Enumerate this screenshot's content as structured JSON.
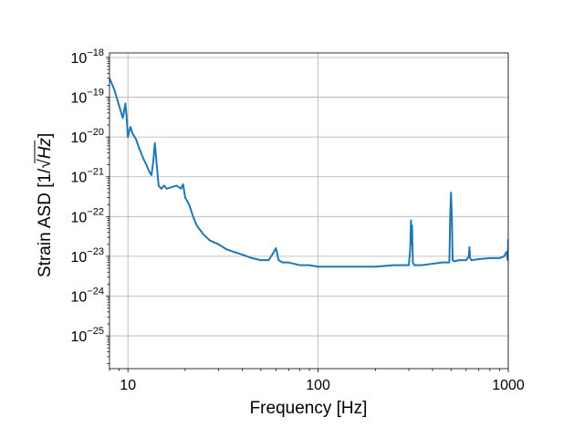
{
  "chart_data": {
    "type": "line",
    "xlabel": "Frequency [Hz]",
    "ylabel_prefix": "Strain ASD [1/√",
    "ylabel_radicand": "Hz",
    "ylabel_suffix": "]",
    "x_scale": "log",
    "y_scale": "log",
    "xlim": [
      8,
      1000
    ],
    "ylim": [
      1.5e-26,
      1.3e-18
    ],
    "grid": true,
    "x_ticks": [
      {
        "value": 10,
        "label": "10"
      },
      {
        "value": 100,
        "label": "100"
      },
      {
        "value": 1000,
        "label": "1000"
      }
    ],
    "y_ticks": [
      {
        "value": 1e-25,
        "base": "10",
        "exp": "−25"
      },
      {
        "value": 1e-24,
        "base": "10",
        "exp": "−24"
      },
      {
        "value": 1e-23,
        "base": "10",
        "exp": "−23"
      },
      {
        "value": 1e-22,
        "base": "10",
        "exp": "−22"
      },
      {
        "value": 1e-21,
        "base": "10",
        "exp": "−21"
      },
      {
        "value": 1e-20,
        "base": "10",
        "exp": "−20"
      },
      {
        "value": 1e-19,
        "base": "10",
        "exp": "−19"
      },
      {
        "value": 1e-18,
        "base": "10",
        "exp": "−18"
      }
    ],
    "series": [
      {
        "color": "#1f77b4",
        "x": [
          8,
          8.5,
          9,
          9.4,
          9.7,
          9.85,
          10,
          10.3,
          10.6,
          11,
          11.5,
          12,
          12.5,
          13,
          13.3,
          13.6,
          13.85,
          14,
          14.25,
          14.5,
          15,
          15.5,
          16,
          17,
          18,
          19,
          19.5,
          20,
          21,
          22,
          23,
          25,
          27,
          30,
          33,
          36,
          40,
          45,
          50,
          55,
          58,
          60,
          62,
          65,
          70,
          80,
          90,
          100,
          120,
          150,
          200,
          250,
          300,
          305,
          308,
          310,
          312,
          315,
          320,
          350,
          400,
          450,
          490,
          495,
          500,
          505,
          510,
          520,
          550,
          600,
          620,
          625,
          630,
          640,
          700,
          800,
          900,
          950,
          980,
          995,
          1000
        ],
        "y": [
          3e-19,
          1.5e-19,
          6e-20,
          3e-20,
          7e-20,
          3e-20,
          1e-20,
          1.8e-20,
          1.2e-20,
          9e-21,
          5e-21,
          3e-21,
          2e-21,
          1.3e-21,
          1.1e-21,
          2.5e-21,
          7e-21,
          4e-21,
          1.5e-21,
          6e-22,
          5e-22,
          6e-22,
          5e-22,
          5.5e-22,
          6e-22,
          5e-22,
          6.5e-22,
          3e-22,
          2e-22,
          1e-22,
          6e-23,
          3.5e-23,
          2.5e-23,
          2e-23,
          1.5e-23,
          1.3e-23,
          1.1e-23,
          9e-24,
          8e-24,
          8e-24,
          1.2e-23,
          1.6e-23,
          8e-24,
          7e-24,
          7e-24,
          6e-24,
          6e-24,
          5.5e-24,
          5.5e-24,
          5.5e-24,
          5.5e-24,
          6e-24,
          6e-24,
          1.5e-23,
          8e-23,
          2e-23,
          6e-23,
          7e-24,
          6e-24,
          6e-24,
          6.5e-24,
          7e-24,
          7e-24,
          1e-22,
          4e-22,
          1e-22,
          8e-24,
          7.5e-24,
          8e-24,
          8e-24,
          1e-23,
          1.7e-23,
          9e-24,
          8e-24,
          8.5e-24,
          9e-24,
          9e-24,
          1e-23,
          1.3e-23,
          8e-24,
          2.7e-23
        ]
      }
    ]
  }
}
